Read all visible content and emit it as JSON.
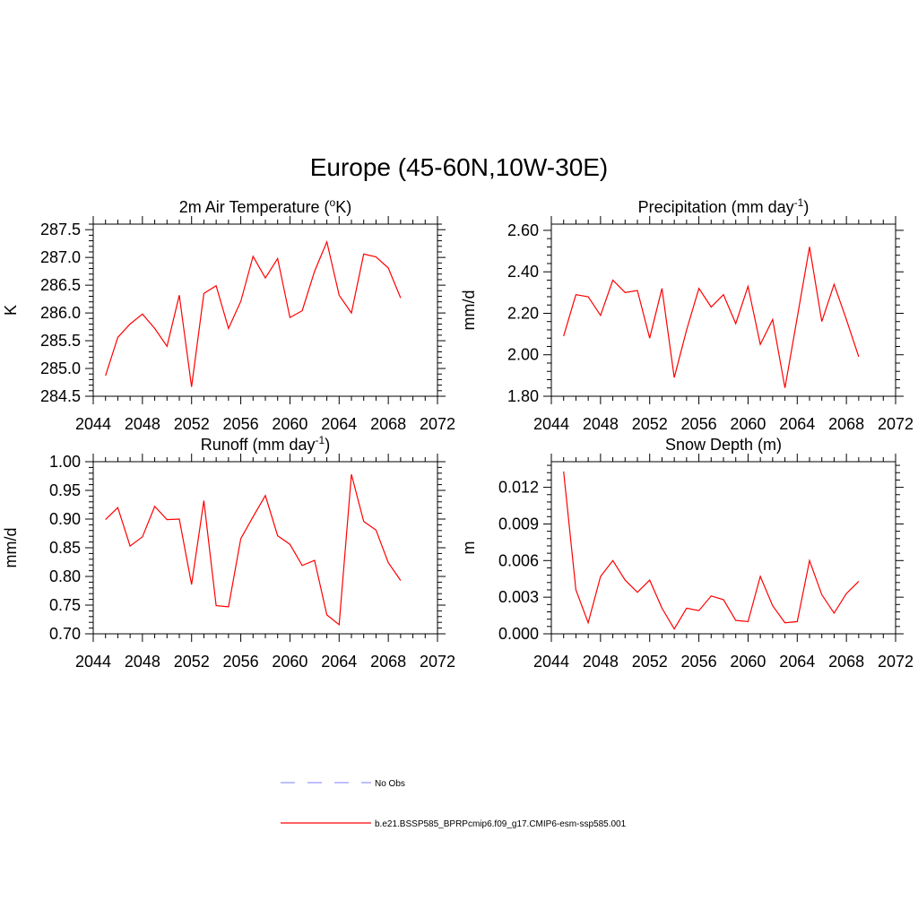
{
  "figure": {
    "title": "Europe (45-60N,10W-30E)"
  },
  "chart_data": [
    {
      "type": "line",
      "title_main": "2m Air Temperature (",
      "title_sup_pre": "o",
      "title_after": "K)",
      "title_sup_post": "",
      "title_end": "",
      "ylabel": "K",
      "xlim": [
        2044,
        2072
      ],
      "ylim": [
        284.5,
        287.6
      ],
      "xticks": [
        2044,
        2048,
        2052,
        2056,
        2060,
        2064,
        2068,
        2072
      ],
      "yticks": [
        284.5,
        285.0,
        285.5,
        286.0,
        286.5,
        287.0,
        287.5
      ],
      "ytick_labels": [
        "284.5",
        "285.0",
        "285.5",
        "286.0",
        "286.5",
        "287.0",
        "287.5"
      ],
      "series": [
        {
          "color": "#ff0000",
          "x": [
            2045,
            2046,
            2047,
            2048,
            2049,
            2050,
            2051,
            2052,
            2053,
            2054,
            2055,
            2056,
            2057,
            2058,
            2059,
            2060,
            2061,
            2062,
            2063,
            2064,
            2065,
            2066,
            2067,
            2068,
            2069
          ],
          "y": [
            284.87,
            285.56,
            285.8,
            285.98,
            285.72,
            285.4,
            286.32,
            284.67,
            286.35,
            286.49,
            285.72,
            286.21,
            287.02,
            286.63,
            286.98,
            285.92,
            286.04,
            286.75,
            287.28,
            286.32,
            286.0,
            287.06,
            287.01,
            286.81,
            286.27
          ]
        }
      ]
    },
    {
      "type": "line",
      "title_main": "Precipitation (mm day",
      "title_sup_pre": "",
      "title_after": "",
      "title_sup_post": "-1",
      "title_end": ")",
      "ylabel": "mm/d",
      "xlim": [
        2044,
        2072
      ],
      "ylim": [
        1.8,
        2.63
      ],
      "xticks": [
        2044,
        2048,
        2052,
        2056,
        2060,
        2064,
        2068,
        2072
      ],
      "yticks": [
        1.8,
        2.0,
        2.2,
        2.4,
        2.6
      ],
      "ytick_labels": [
        "1.80",
        "2.00",
        "2.20",
        "2.40",
        "2.60"
      ],
      "series": [
        {
          "color": "#ff0000",
          "x": [
            2045,
            2046,
            2047,
            2048,
            2049,
            2050,
            2051,
            2052,
            2053,
            2054,
            2055,
            2056,
            2057,
            2058,
            2059,
            2060,
            2061,
            2062,
            2063,
            2064,
            2065,
            2066,
            2067,
            2068,
            2069
          ],
          "y": [
            2.09,
            2.29,
            2.28,
            2.19,
            2.36,
            2.3,
            2.31,
            2.08,
            2.32,
            1.89,
            2.12,
            2.32,
            2.23,
            2.29,
            2.15,
            2.33,
            2.05,
            2.17,
            1.84,
            2.18,
            2.52,
            2.16,
            2.34,
            2.17,
            1.99
          ]
        }
      ]
    },
    {
      "type": "line",
      "title_main": "Runoff (mm day",
      "title_sup_pre": "",
      "title_after": "",
      "title_sup_post": "-1",
      "title_end": ")",
      "ylabel": "mm/d",
      "xlim": [
        2044,
        2072
      ],
      "ylim": [
        0.7,
        1.0
      ],
      "xticks": [
        2044,
        2048,
        2052,
        2056,
        2060,
        2064,
        2068,
        2072
      ],
      "yticks": [
        0.7,
        0.75,
        0.8,
        0.85,
        0.9,
        0.95,
        1.0
      ],
      "ytick_labels": [
        "0.70",
        "0.75",
        "0.80",
        "0.85",
        "0.90",
        "0.95",
        "1.00"
      ],
      "series": [
        {
          "color": "#ff0000",
          "x": [
            2045,
            2046,
            2047,
            2048,
            2049,
            2050,
            2051,
            2052,
            2053,
            2054,
            2055,
            2056,
            2057,
            2058,
            2059,
            2060,
            2061,
            2062,
            2063,
            2064,
            2065,
            2066,
            2067,
            2068,
            2069
          ],
          "y": [
            0.899,
            0.92,
            0.853,
            0.869,
            0.922,
            0.899,
            0.9,
            0.786,
            0.932,
            0.749,
            0.747,
            0.866,
            0.904,
            0.941,
            0.871,
            0.856,
            0.819,
            0.828,
            0.733,
            0.716,
            0.978,
            0.896,
            0.881,
            0.824,
            0.793
          ]
        }
      ]
    },
    {
      "type": "line",
      "title_main": "Snow Depth (m)",
      "title_sup_pre": "",
      "title_after": "",
      "title_sup_post": "",
      "title_end": "",
      "ylabel": "m",
      "xlim": [
        2044,
        2072
      ],
      "ylim": [
        0.0,
        0.0141
      ],
      "xticks": [
        2044,
        2048,
        2052,
        2056,
        2060,
        2064,
        2068,
        2072
      ],
      "yticks": [
        0.0,
        0.003,
        0.006,
        0.009,
        0.012
      ],
      "ytick_labels": [
        "0.000",
        "0.003",
        "0.006",
        "0.009",
        "0.012"
      ],
      "series": [
        {
          "color": "#ff0000",
          "x": [
            2045,
            2046,
            2047,
            2048,
            2049,
            2050,
            2051,
            2052,
            2053,
            2054,
            2055,
            2056,
            2057,
            2058,
            2059,
            2060,
            2061,
            2062,
            2063,
            2064,
            2065,
            2066,
            2067,
            2068,
            2069
          ],
          "y": [
            0.0133,
            0.0036,
            0.0009,
            0.0047,
            0.006,
            0.0044,
            0.0034,
            0.0044,
            0.0021,
            0.0004,
            0.0021,
            0.0019,
            0.0031,
            0.0028,
            0.0011,
            0.001,
            0.0047,
            0.0023,
            0.0009,
            0.001,
            0.006,
            0.0032,
            0.0017,
            0.0033,
            0.0043
          ]
        }
      ]
    }
  ],
  "legend": {
    "items": [
      {
        "label": "No Obs",
        "color": "#9999ff",
        "style": "dashed"
      },
      {
        "label": "b.e21.BSSP585_BPRPcmip6.f09_g17.CMIP6-esm-ssp585.001",
        "color": "#ff0000",
        "style": "solid"
      }
    ]
  }
}
